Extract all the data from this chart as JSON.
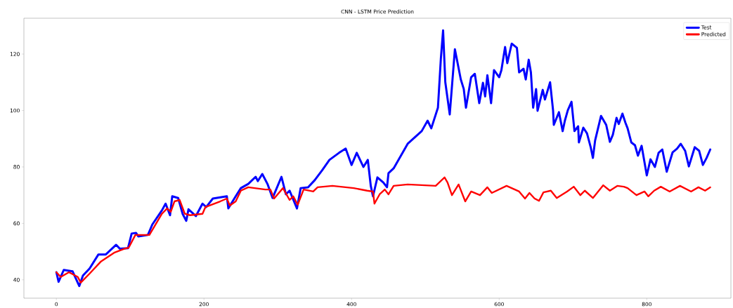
{
  "chart_data": {
    "type": "line",
    "title": "CNN - LSTM Price Prediction",
    "xlim": [
      -44,
      914
    ],
    "ylim": [
      33.5,
      132.7
    ],
    "xticks": [
      0,
      200,
      400,
      600,
      800
    ],
    "yticks": [
      40,
      60,
      80,
      100,
      120
    ],
    "legend": "top right",
    "grid": false,
    "marker": "none",
    "line_style": "solid",
    "series": [
      {
        "name": "Test",
        "color": "#0000ff",
        "x": [
          0,
          3,
          10,
          22,
          31,
          36,
          45,
          57,
          67,
          81,
          86,
          97,
          102,
          108,
          111,
          124,
          130,
          143,
          148,
          154,
          157,
          165,
          171,
          176,
          179,
          189,
          198,
          203,
          212,
          231,
          233,
          243,
          250,
          260,
          270,
          273,
          279,
          286,
          293,
          305,
          311,
          316,
          326,
          331,
          341,
          350,
          360,
          370,
          383,
          392,
          400,
          407,
          416,
          422,
          426,
          429,
          435,
          443,
          448,
          450,
          457,
          476,
          495,
          503,
          508,
          517,
          521,
          524,
          527,
          533,
          540,
          548,
          552,
          555,
          562,
          567,
          573,
          578,
          581,
          584,
          589,
          593,
          600,
          603,
          608,
          611,
          617,
          624,
          627,
          633,
          636,
          640,
          643,
          646,
          650,
          652,
          659,
          662,
          669,
          673,
          674,
          681,
          686,
          689,
          693,
          698,
          702,
          707,
          708,
          714,
          719,
          724,
          727,
          730,
          738,
          745,
          750,
          754,
          759,
          762,
          767,
          771,
          774,
          779,
          784,
          788,
          793,
          800,
          805,
          811,
          816,
          821,
          827,
          835,
          841,
          846,
          852,
          857,
          865,
          871,
          876,
          881,
          886
        ],
        "values": [
          42.7,
          39.3,
          43.5,
          43,
          37.8,
          41.5,
          44,
          49,
          49,
          52.4,
          51,
          51.2,
          56.4,
          56.6,
          55.4,
          55.9,
          59.6,
          64.6,
          67,
          62.9,
          69.6,
          69,
          63.4,
          60.9,
          65,
          62.6,
          67,
          65.8,
          68.8,
          69.6,
          65.3,
          69.6,
          72.5,
          74,
          76.5,
          75,
          77.5,
          74,
          69,
          76.5,
          70.3,
          71.6,
          65.3,
          72.5,
          72.8,
          75.3,
          78.8,
          82.5,
          85,
          86.5,
          80.7,
          85,
          80,
          82.5,
          73.3,
          69.6,
          76.3,
          74.5,
          72.8,
          77.8,
          79.5,
          88.2,
          92.7,
          96.4,
          93.7,
          101,
          118.5,
          128.4,
          110,
          98.6,
          121.7,
          111,
          107.6,
          101,
          111.8,
          113,
          102.6,
          109.8,
          105,
          112.5,
          102.6,
          114.3,
          111.8,
          114.3,
          122.5,
          116.8,
          123.7,
          122.2,
          113.5,
          114.8,
          111,
          118,
          113.5,
          101,
          107.6,
          99.9,
          107.3,
          103.9,
          110,
          100.1,
          94.9,
          99.4,
          92.7,
          96.4,
          100.1,
          103.1,
          92.7,
          94.4,
          88.7,
          93.9,
          91.9,
          87,
          83.2,
          89.4,
          98.1,
          94.9,
          88.9,
          91.4,
          97.4,
          95.2,
          98.9,
          95.7,
          93.7,
          88.7,
          87.7,
          84,
          87.5,
          77,
          82.7,
          80,
          85,
          86.2,
          78.3,
          85.2,
          86.5,
          88.2,
          85.7,
          80.2,
          87,
          85.7,
          80.7,
          83.2,
          86.2
        ]
      },
      {
        "name": "Predicted",
        "color": "#ff0000",
        "x": [
          0,
          6,
          17,
          29,
          33,
          45,
          60,
          79,
          92,
          98,
          107,
          126,
          143,
          150,
          155,
          160,
          167,
          174,
          181,
          198,
          202,
          222,
          231,
          235,
          243,
          250,
          260,
          283,
          290,
          295,
          307,
          316,
          321,
          327,
          335,
          348,
          354,
          374,
          403,
          421,
          429,
          431,
          438,
          445,
          450,
          457,
          476,
          514,
          526,
          530,
          536,
          545,
          554,
          562,
          574,
          584,
          590,
          610,
          627,
          635,
          641,
          648,
          654,
          660,
          670,
          678,
          692,
          701,
          710,
          716,
          727,
          741,
          750,
          760,
          769,
          774,
          786,
          797,
          802,
          810,
          819,
          831,
          845,
          860,
          870,
          879,
          886
        ],
        "values": [
          42.7,
          41,
          42.7,
          41,
          39,
          42.2,
          46.4,
          49.7,
          51,
          51.4,
          55.9,
          55.9,
          63.4,
          65.3,
          64.1,
          67.8,
          68.3,
          63.4,
          62.9,
          63.4,
          65.8,
          67.8,
          68.8,
          66.3,
          67.8,
          71.6,
          72.8,
          72,
          72,
          68.8,
          72.5,
          68.3,
          69.6,
          66.6,
          72,
          71.3,
          72.8,
          73.3,
          72.5,
          71.6,
          71.3,
          67,
          70.3,
          72,
          70.3,
          73.3,
          73.8,
          73.3,
          76.3,
          74.5,
          70,
          73.8,
          67.8,
          71.3,
          70,
          72.8,
          70.8,
          73.3,
          71.3,
          68.8,
          70.8,
          68.8,
          68,
          71,
          71.6,
          69,
          71.3,
          73,
          70,
          71.6,
          69,
          73.5,
          71.6,
          73.3,
          73,
          72.5,
          70,
          71.3,
          69.6,
          71.6,
          73,
          71.3,
          73.3,
          71.3,
          72.8,
          71.6,
          72.8
        ]
      }
    ]
  }
}
